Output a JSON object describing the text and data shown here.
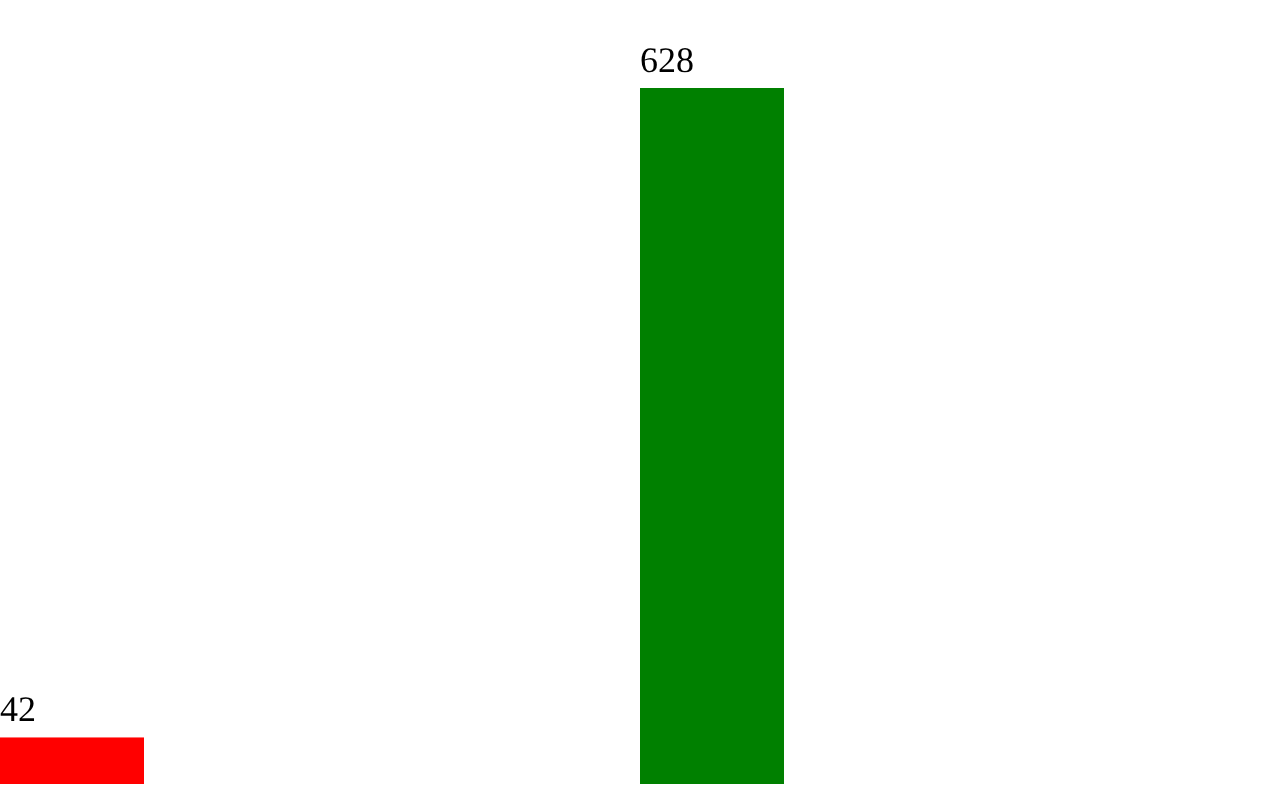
{
  "chart_data": {
    "type": "bar",
    "categories": [
      null,
      null
    ],
    "values": [
      42,
      628
    ],
    "colors": [
      "#ff0000",
      "#008000"
    ],
    "data_labels": true
  }
}
